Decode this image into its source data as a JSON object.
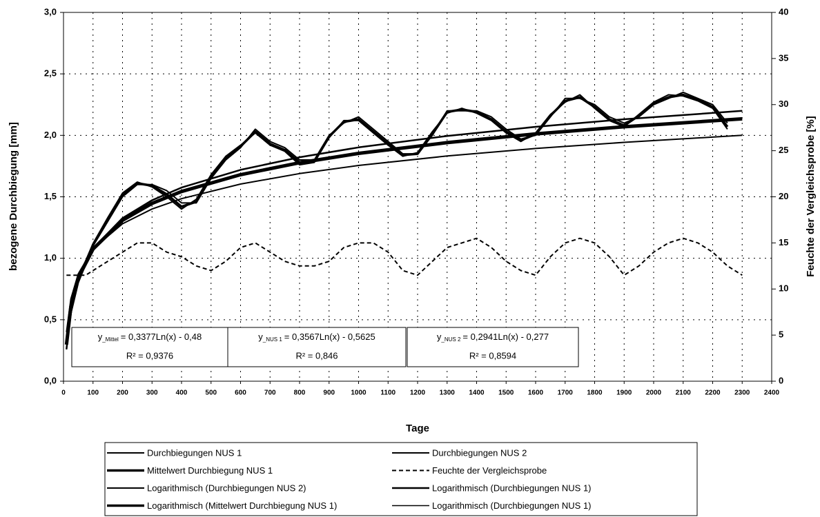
{
  "chart_data": {
    "type": "line",
    "xlabel": "Tage",
    "ylabel": "bezogene Durchbiegung  [mm]",
    "y2label": "Feuchte der Vergleichsprobe [%]",
    "xlim": [
      0,
      2400
    ],
    "xticks": [
      0,
      100,
      200,
      300,
      400,
      500,
      600,
      700,
      800,
      900,
      1000,
      1100,
      1200,
      1300,
      1400,
      1500,
      1600,
      1700,
      1800,
      1900,
      2000,
      2100,
      2200,
      2300,
      2400
    ],
    "ylim": [
      0,
      3
    ],
    "yticks": [
      {
        "value": 0,
        "label": "0,0"
      },
      {
        "value": 0.5,
        "label": "0,5"
      },
      {
        "value": 1,
        "label": "1,0"
      },
      {
        "value": 1.5,
        "label": "1,5"
      },
      {
        "value": 2,
        "label": "2,0"
      },
      {
        "value": 2.5,
        "label": "2,5"
      },
      {
        "value": 3,
        "label": "3,0"
      }
    ],
    "y2lim": [
      0,
      40
    ],
    "y2ticks": [
      0,
      5,
      10,
      15,
      20,
      25,
      30,
      35,
      40
    ],
    "grid": true,
    "series": [
      {
        "name": "Durchbiegungen NUS 1",
        "color": "#000000",
        "width": 2,
        "dash": false,
        "x": [
          10,
          25,
          50,
          75,
          100,
          150,
          200,
          250,
          300,
          350,
          400,
          450,
          500,
          550,
          600,
          650,
          700,
          750,
          800,
          850,
          900,
          950,
          1000,
          1050,
          1100,
          1150,
          1200,
          1250,
          1300,
          1350,
          1400,
          1450,
          1500,
          1550,
          1600,
          1650,
          1700,
          1750,
          1800,
          1850,
          1900,
          1950,
          2000,
          2050,
          2100,
          2150,
          2200,
          2250
        ],
        "values": [
          0.3,
          0.55,
          0.8,
          0.95,
          1.1,
          1.3,
          1.5,
          1.6,
          1.6,
          1.55,
          1.45,
          1.45,
          1.65,
          1.8,
          1.9,
          2.05,
          1.95,
          1.9,
          1.8,
          1.8,
          2.0,
          2.1,
          2.15,
          2.05,
          1.95,
          1.85,
          1.85,
          2.0,
          2.2,
          2.2,
          2.2,
          2.15,
          2.05,
          1.97,
          2.0,
          2.15,
          2.3,
          2.3,
          2.25,
          2.15,
          2.1,
          2.15,
          2.25,
          2.3,
          2.35,
          2.3,
          2.25,
          2.1
        ]
      },
      {
        "name": "Durchbiegungen NUS 2",
        "color": "#000000",
        "width": 2,
        "dash": false,
        "x": [
          10,
          25,
          50,
          75,
          100,
          150,
          200,
          250,
          300,
          350,
          400,
          450,
          500,
          550,
          600,
          650,
          700,
          750,
          800,
          850,
          900,
          950,
          1000,
          1050,
          1100,
          1150,
          1200,
          1250,
          1300,
          1350,
          1400,
          1450,
          1500,
          1550,
          1600,
          1650,
          1700,
          1750,
          1800,
          1850,
          1900,
          1950,
          2000,
          2050,
          2100,
          2150,
          2200,
          2250
        ],
        "values": [
          0.32,
          0.6,
          0.85,
          0.98,
          1.12,
          1.33,
          1.53,
          1.62,
          1.58,
          1.5,
          1.4,
          1.48,
          1.68,
          1.83,
          1.92,
          2.02,
          1.92,
          1.87,
          1.76,
          1.78,
          1.98,
          2.12,
          2.12,
          2.02,
          1.92,
          1.83,
          1.86,
          2.03,
          2.18,
          2.22,
          2.18,
          2.12,
          2.02,
          1.95,
          2.02,
          2.17,
          2.27,
          2.33,
          2.22,
          2.12,
          2.07,
          2.17,
          2.27,
          2.33,
          2.32,
          2.28,
          2.22,
          2.05
        ]
      },
      {
        "name": "Mittelwert Durchbiegung NUS 1",
        "color": "#000000",
        "width": 3.5,
        "dash": false,
        "x": [
          10,
          25,
          50,
          75,
          100,
          150,
          200,
          250,
          300,
          350,
          400,
          450,
          500,
          550,
          600,
          650,
          700,
          750,
          800,
          850,
          900,
          950,
          1000,
          1050,
          1100,
          1150,
          1200,
          1250,
          1300,
          1350,
          1400,
          1450,
          1500,
          1550,
          1600,
          1650,
          1700,
          1750,
          1800,
          1850,
          1900,
          1950,
          2000,
          2050,
          2100,
          2150,
          2200,
          2250
        ],
        "values": [
          0.31,
          0.57,
          0.82,
          0.96,
          1.11,
          1.31,
          1.51,
          1.61,
          1.59,
          1.52,
          1.42,
          1.46,
          1.66,
          1.81,
          1.91,
          2.03,
          1.93,
          1.88,
          1.78,
          1.79,
          1.99,
          2.11,
          2.13,
          2.03,
          1.93,
          1.84,
          1.85,
          2.01,
          2.19,
          2.21,
          2.19,
          2.13,
          2.03,
          1.96,
          2.01,
          2.16,
          2.28,
          2.31,
          2.23,
          2.13,
          2.08,
          2.16,
          2.26,
          2.31,
          2.33,
          2.29,
          2.23,
          2.07
        ]
      },
      {
        "name": "Feuchte der Vergleichsprobe",
        "color": "#000000",
        "width": 2,
        "dash": true,
        "axis": "y2",
        "x": [
          10,
          25,
          50,
          75,
          100,
          150,
          200,
          250,
          300,
          350,
          400,
          450,
          500,
          550,
          600,
          650,
          700,
          750,
          800,
          850,
          900,
          950,
          1000,
          1050,
          1100,
          1150,
          1200,
          1250,
          1300,
          1350,
          1400,
          1450,
          1500,
          1550,
          1600,
          1650,
          1700,
          1750,
          1800,
          1850,
          1900,
          1950,
          2000,
          2050,
          2100,
          2150,
          2200,
          2250,
          2300
        ],
        "values": [
          11.5,
          11.5,
          11.5,
          11.5,
          12,
          13,
          14,
          15,
          15,
          14,
          13.5,
          12.5,
          12,
          13,
          14.5,
          15,
          14,
          13,
          12.5,
          12.5,
          13,
          14.5,
          15,
          15,
          14,
          12,
          11.5,
          13,
          14.5,
          15,
          15.5,
          14.5,
          13,
          12,
          11.5,
          13.5,
          15,
          15.5,
          15,
          13.5,
          11.5,
          12.5,
          14,
          15,
          15.5,
          15,
          14,
          12.5,
          11.5
        ]
      },
      {
        "name": "Logarithmisch (Durchbiegungen NUS 2)",
        "color": "#000000",
        "width": 2,
        "dash": false,
        "x": [
          10,
          25,
          50,
          100,
          200,
          300,
          400,
          600,
          800,
          1000,
          1300,
          1600,
          1900,
          2300
        ],
        "values": [
          0.4,
          0.67,
          0.873,
          1.077,
          1.281,
          1.401,
          1.485,
          1.604,
          1.689,
          1.755,
          1.832,
          1.893,
          1.943,
          2.0
        ]
      },
      {
        "name": "Logarithmisch (Durchbiegungen NUS 1)",
        "color": "#000000",
        "width": 2.5,
        "dash": false,
        "x": [
          10,
          25,
          50,
          100,
          200,
          300,
          400,
          600,
          800,
          1000,
          1300,
          1600,
          1900,
          2300
        ],
        "values": [
          0.259,
          0.586,
          0.833,
          1.08,
          1.327,
          1.472,
          1.575,
          1.719,
          1.822,
          1.902,
          1.995,
          2.069,
          2.131,
          2.199
        ]
      },
      {
        "name": "Logarithmisch (Mittelwert Durchbiegung NUS 1)",
        "color": "#000000",
        "width": 5,
        "dash": false,
        "x": [
          10,
          25,
          50,
          100,
          200,
          300,
          400,
          600,
          800,
          1000,
          1300,
          1600,
          1900,
          2300
        ],
        "values": [
          0.298,
          0.607,
          0.841,
          1.075,
          1.309,
          1.446,
          1.543,
          1.68,
          1.777,
          1.853,
          1.941,
          2.012,
          2.07,
          2.134
        ]
      },
      {
        "name": "Logarithmisch (Durchbiegungen NUS 1)",
        "color": "#000000",
        "width": 1.5,
        "dash": false,
        "x": [
          10,
          25,
          50,
          100,
          200,
          300,
          400,
          600,
          800,
          1000,
          1300,
          1600,
          1900,
          2300
        ],
        "values": [
          0.259,
          0.586,
          0.833,
          1.08,
          1.327,
          1.472,
          1.575,
          1.719,
          1.822,
          1.902,
          1.995,
          2.069,
          2.131,
          2.199
        ]
      }
    ],
    "annotations": [
      {
        "symbol": "y",
        "subscript": "_Mittel",
        "equation": "= 0,3377Ln(x) - 0,48",
        "r2": "R² = 0,9376"
      },
      {
        "symbol": "y",
        "subscript": "_NUS 1",
        "equation": "= 0,3567Ln(x) - 0,5625",
        "r2": "R² = 0,846"
      },
      {
        "symbol": "y",
        "subscript": "_NUS 2",
        "equation": "= 0,2941Ln(x) - 0,277",
        "r2": "R² = 0,8594"
      }
    ]
  }
}
